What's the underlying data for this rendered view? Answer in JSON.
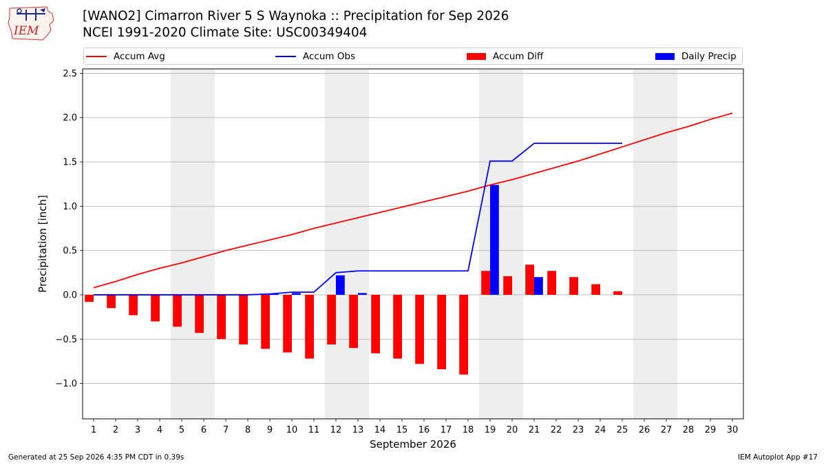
{
  "header": {
    "logo_text": "IEM",
    "title_line1": "[WANO2] Cimarron River 5 S Waynoka :: Precipitation for Sep 2026",
    "title_line2": "NCEI 1991-2020 Climate Site: USC00349404"
  },
  "legend": {
    "accum_avg": "Accum Avg",
    "accum_obs": "Accum Obs",
    "accum_diff": "Accum Diff",
    "daily_precip": "Daily Precip"
  },
  "colors": {
    "accum_avg": "#ff0000",
    "accum_obs": "#0000ff",
    "accum_diff": "#ff0000",
    "daily_precip": "#0000ff",
    "weekend_band": "#eeeeee",
    "grid": "#b0b0b0"
  },
  "chart_data": {
    "type": "bar",
    "title": "[WANO2] Cimarron River 5 S Waynoka :: Precipitation for Sep 2026",
    "xlabel": "September 2026",
    "ylabel": "Precipitation [inch]",
    "ylim": [
      -1.4,
      2.55
    ],
    "xlim": [
      0.5,
      30.5
    ],
    "yticks": [
      -1.0,
      -0.5,
      0.0,
      0.5,
      1.0,
      1.5,
      2.0,
      2.5
    ],
    "ytick_labels": [
      "−1.0",
      "−0.5",
      "0.0",
      "0.5",
      "1.0",
      "1.5",
      "2.0",
      "2.5"
    ],
    "x": [
      1,
      2,
      3,
      4,
      5,
      6,
      7,
      8,
      9,
      10,
      11,
      12,
      13,
      14,
      15,
      16,
      17,
      18,
      19,
      20,
      21,
      22,
      23,
      24,
      25,
      26,
      27,
      28,
      29,
      30
    ],
    "weekend_days": [
      5,
      6,
      12,
      13,
      19,
      20,
      26,
      27
    ],
    "grid": "horizontal",
    "legend_position": "top",
    "series": [
      {
        "name": "Accum Avg",
        "kind": "line",
        "x": [
          1,
          2,
          3,
          4,
          5,
          6,
          7,
          8,
          9,
          10,
          11,
          12,
          13,
          14,
          15,
          16,
          17,
          18,
          19,
          20,
          21,
          22,
          23,
          24,
          25,
          26,
          27,
          28,
          29,
          30
        ],
        "values": [
          0.08,
          0.15,
          0.23,
          0.3,
          0.36,
          0.43,
          0.5,
          0.56,
          0.62,
          0.68,
          0.75,
          0.81,
          0.87,
          0.93,
          0.99,
          1.05,
          1.11,
          1.17,
          1.24,
          1.3,
          1.37,
          1.44,
          1.51,
          1.59,
          1.67,
          1.75,
          1.83,
          1.9,
          1.98,
          2.05
        ]
      },
      {
        "name": "Accum Obs",
        "kind": "line",
        "x": [
          1,
          2,
          3,
          4,
          5,
          6,
          7,
          8,
          9,
          10,
          11,
          12,
          13,
          14,
          15,
          16,
          17,
          18,
          19,
          20,
          21,
          22,
          23,
          24,
          25
        ],
        "values": [
          0,
          0,
          0,
          0,
          0,
          0,
          0,
          0,
          0.01,
          0.03,
          0.03,
          0.25,
          0.27,
          0.27,
          0.27,
          0.27,
          0.27,
          0.27,
          1.51,
          1.51,
          1.71,
          1.71,
          1.71,
          1.71,
          1.71
        ]
      },
      {
        "name": "Accum Diff",
        "kind": "bar",
        "x": [
          1,
          2,
          3,
          4,
          5,
          6,
          7,
          8,
          9,
          10,
          11,
          12,
          13,
          14,
          15,
          16,
          17,
          18,
          19,
          20,
          21,
          22,
          23,
          24,
          25
        ],
        "values": [
          -0.08,
          -0.15,
          -0.23,
          -0.3,
          -0.36,
          -0.43,
          -0.5,
          -0.56,
          -0.61,
          -0.65,
          -0.72,
          -0.56,
          -0.6,
          -0.66,
          -0.72,
          -0.78,
          -0.84,
          -0.9,
          0.27,
          0.21,
          0.34,
          0.27,
          0.2,
          0.12,
          0.04
        ]
      },
      {
        "name": "Daily Precip",
        "kind": "bar",
        "x": [
          1,
          2,
          3,
          4,
          5,
          6,
          7,
          8,
          9,
          10,
          11,
          12,
          13,
          14,
          15,
          16,
          17,
          18,
          19,
          20,
          21,
          22,
          23,
          24,
          25
        ],
        "values": [
          0,
          0,
          0,
          0,
          0,
          0,
          0,
          0,
          0.01,
          0.02,
          0,
          0.22,
          0.02,
          0,
          0,
          0,
          0,
          0,
          1.24,
          0,
          0.2,
          0,
          0,
          0,
          0
        ]
      }
    ]
  },
  "footer": {
    "generated": "Generated at 25 Sep 2026 4:35 PM CDT in 0.39s",
    "app": "IEM Autoplot App #17"
  }
}
